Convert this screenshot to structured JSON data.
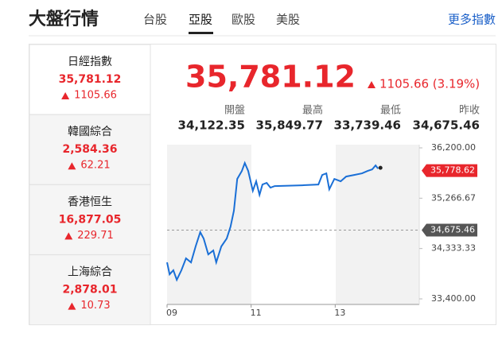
{
  "header": {
    "title": "大盤行情",
    "tabs": [
      "台股",
      "亞股",
      "歐股",
      "美股"
    ],
    "active_tab": 1,
    "more": "更多指數"
  },
  "sidebar": [
    {
      "name": "日經指數",
      "value": "35,781.12",
      "change": "1105.66"
    },
    {
      "name": "韓國綜合",
      "value": "2,584.36",
      "change": "62.21"
    },
    {
      "name": "香港恒生",
      "value": "16,877.05",
      "change": "229.71"
    },
    {
      "name": "上海綜合",
      "value": "2,878.01",
      "change": "10.73"
    }
  ],
  "quote": {
    "price": "35,781.12",
    "change": "1105.66 (3.19%)",
    "stats": [
      {
        "label": "開盤",
        "value": "34,122.35"
      },
      {
        "label": "最高",
        "value": "35,849.77"
      },
      {
        "label": "最低",
        "value": "33,739.46"
      },
      {
        "label": "昨收",
        "value": "34,675.46"
      }
    ]
  },
  "chart_data": {
    "type": "line",
    "color": "#1a6fd6",
    "x": [
      9.0,
      9.06,
      9.15,
      9.23,
      9.34,
      9.45,
      9.57,
      9.68,
      9.79,
      9.87,
      9.98,
      10.1,
      10.17,
      10.29,
      10.42,
      10.51,
      10.59,
      10.67,
      10.78,
      10.85,
      10.93,
      11.04,
      11.12,
      11.2,
      11.27,
      11.37,
      11.46,
      11.56,
      12.22,
      12.6,
      12.69,
      12.79,
      12.86,
      12.98,
      13.13,
      13.26,
      13.45,
      13.64,
      13.77,
      13.88,
      13.96,
      14.02
    ],
    "values": [
      34077,
      33856,
      33930,
      33753,
      33930,
      34151,
      34077,
      34372,
      34637,
      34519,
      34225,
      34298,
      34077,
      34372,
      34519,
      34740,
      35035,
      35624,
      35771,
      35918,
      35771,
      35403,
      35580,
      35329,
      35521,
      35550,
      35462,
      35491,
      35506,
      35521,
      35698,
      35727,
      35432,
      35624,
      35580,
      35668,
      35698,
      35727,
      35771,
      35800,
      35874,
      35815
    ],
    "xlim": [
      9,
      15
    ],
    "xticks": [
      {
        "value": 9,
        "label": "09"
      },
      {
        "value": 11,
        "label": "11"
      },
      {
        "value": 13,
        "label": "13"
      }
    ],
    "ylim": [
      33400,
      36200
    ],
    "yticks": [
      {
        "value": 33400,
        "label": "33,400.00"
      },
      {
        "value": 34333.33,
        "label": "34,333.33"
      },
      {
        "value": 35266.67,
        "label": "35,266.67"
      },
      {
        "value": 36200,
        "label": "36,200.00"
      }
    ],
    "last_price": {
      "value": 35778.62,
      "label": "35,778.62"
    },
    "reference": {
      "value": 34675.46,
      "label": "34,675.46"
    }
  }
}
